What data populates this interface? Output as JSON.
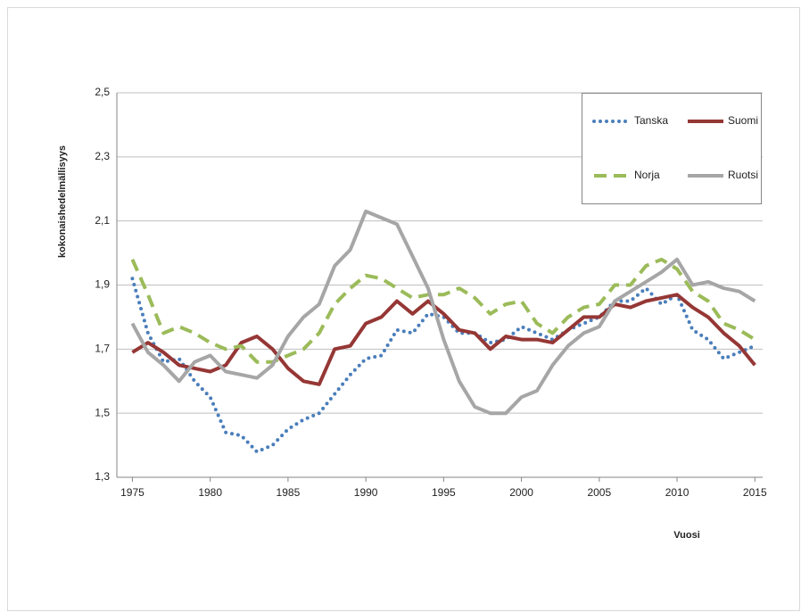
{
  "chart_data": {
    "type": "line",
    "y_label": "kokonaishedelmällisyys",
    "x_label": "Vuosi",
    "x": [
      1975,
      1976,
      1977,
      1978,
      1979,
      1980,
      1981,
      1982,
      1983,
      1984,
      1985,
      1986,
      1987,
      1988,
      1989,
      1990,
      1991,
      1992,
      1993,
      1994,
      1995,
      1996,
      1997,
      1998,
      1999,
      2000,
      2001,
      2002,
      2003,
      2004,
      2005,
      2006,
      2007,
      2008,
      2009,
      2010,
      2011,
      2012,
      2013,
      2014,
      2015
    ],
    "xlim": [
      1974,
      2015.5
    ],
    "xticks": [
      1975,
      1980,
      1985,
      1990,
      1995,
      2000,
      2005,
      2010,
      2015
    ],
    "ylim": [
      1.3,
      2.5
    ],
    "yticks": [
      {
        "value": 1.3,
        "label": "1,3"
      },
      {
        "value": 1.5,
        "label": "1,5"
      },
      {
        "value": 1.7,
        "label": "1,7"
      },
      {
        "value": 1.9,
        "label": "1,9"
      },
      {
        "value": 2.1,
        "label": "2,1"
      },
      {
        "value": 2.3,
        "label": "2,3"
      },
      {
        "value": 2.5,
        "label": "2,5"
      }
    ],
    "grid": true,
    "legend": "upper right",
    "series": [
      {
        "name": "Tanska",
        "color": "#4a7ebb",
        "style": "dotted",
        "values": [
          1.92,
          1.75,
          1.66,
          1.67,
          1.6,
          1.55,
          1.44,
          1.43,
          1.38,
          1.4,
          1.45,
          1.48,
          1.5,
          1.56,
          1.62,
          1.67,
          1.68,
          1.76,
          1.75,
          1.81,
          1.8,
          1.75,
          1.75,
          1.72,
          1.73,
          1.77,
          1.75,
          1.73,
          1.76,
          1.78,
          1.8,
          1.85,
          1.85,
          1.89,
          1.84,
          1.87,
          1.76,
          1.73,
          1.67,
          1.69,
          1.71
        ]
      },
      {
        "name": "Suomi",
        "color": "#953735",
        "style": "solid",
        "values": [
          1.69,
          1.72,
          1.69,
          1.65,
          1.64,
          1.63,
          1.65,
          1.72,
          1.74,
          1.7,
          1.64,
          1.6,
          1.59,
          1.7,
          1.71,
          1.78,
          1.8,
          1.85,
          1.81,
          1.85,
          1.81,
          1.76,
          1.75,
          1.7,
          1.74,
          1.73,
          1.73,
          1.72,
          1.76,
          1.8,
          1.8,
          1.84,
          1.83,
          1.85,
          1.86,
          1.87,
          1.83,
          1.8,
          1.75,
          1.71,
          1.65
        ]
      },
      {
        "name": "Norja",
        "color": "#9bbb59",
        "style": "dashed",
        "values": [
          1.98,
          1.87,
          1.75,
          1.77,
          1.75,
          1.72,
          1.7,
          1.71,
          1.66,
          1.66,
          1.68,
          1.7,
          1.75,
          1.84,
          1.89,
          1.93,
          1.92,
          1.89,
          1.86,
          1.87,
          1.87,
          1.89,
          1.86,
          1.81,
          1.84,
          1.85,
          1.78,
          1.75,
          1.8,
          1.83,
          1.84,
          1.9,
          1.9,
          1.96,
          1.98,
          1.95,
          1.88,
          1.85,
          1.78,
          1.76,
          1.73
        ]
      },
      {
        "name": "Ruotsi",
        "color": "#a6a6a6",
        "style": "solid",
        "values": [
          1.78,
          1.69,
          1.65,
          1.6,
          1.66,
          1.68,
          1.63,
          1.62,
          1.61,
          1.65,
          1.74,
          1.8,
          1.84,
          1.96,
          2.01,
          2.13,
          2.11,
          2.09,
          1.99,
          1.89,
          1.73,
          1.6,
          1.52,
          1.5,
          1.5,
          1.55,
          1.57,
          1.65,
          1.71,
          1.75,
          1.77,
          1.85,
          1.88,
          1.91,
          1.94,
          1.98,
          1.9,
          1.91,
          1.89,
          1.88,
          1.85
        ]
      }
    ]
  }
}
